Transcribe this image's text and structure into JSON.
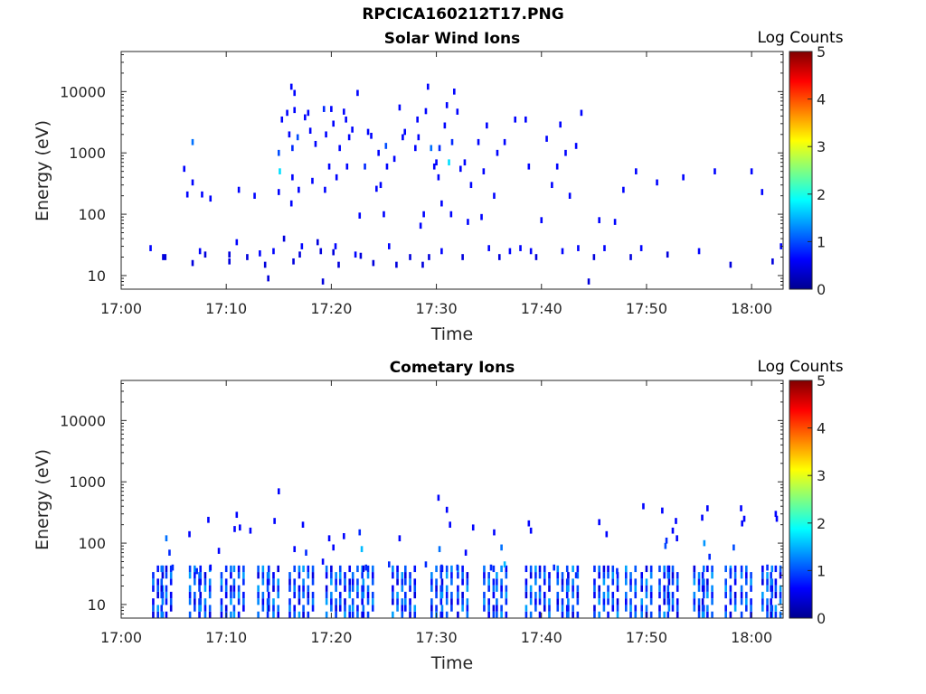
{
  "figure_title": "RPCICA160212T17.PNG",
  "colors": {
    "colormap": "jet",
    "axis": "#262626",
    "background": "#ffffff"
  },
  "chart_data": [
    {
      "type": "heatmap",
      "title": "Solar Wind Ions",
      "xlabel": "Time",
      "ylabel": "Energy (eV)",
      "colorbar_label": "Log Counts",
      "x_ticks": [
        "17:00",
        "17:10",
        "17:20",
        "17:30",
        "17:40",
        "17:50",
        "18:00"
      ],
      "x_tick_minutes": [
        0,
        10,
        20,
        30,
        40,
        50,
        60
      ],
      "xlim_minutes": [
        0,
        63
      ],
      "y_scale": "log",
      "y_ticks": [
        "10",
        "100",
        "1000",
        "10000"
      ],
      "y_tick_values": [
        10,
        100,
        1000,
        10000
      ],
      "ylim": [
        6,
        45000
      ],
      "colorbar_ticks": [
        "0",
        "1",
        "2",
        "3",
        "4",
        "5"
      ],
      "colorbar_range": [
        0,
        5
      ],
      "points_note_units": "[minutes after 17:00, energy eV, log counts]",
      "points": [
        [
          2.8,
          28,
          0.3
        ],
        [
          4.0,
          20,
          0.2
        ],
        [
          4.2,
          20,
          0.2
        ],
        [
          6.0,
          550,
          0.3
        ],
        [
          6.3,
          210,
          0.3
        ],
        [
          6.8,
          16,
          0.2
        ],
        [
          6.8,
          1500,
          0.6
        ],
        [
          6.8,
          330,
          0.3
        ],
        [
          7.5,
          25,
          0.3
        ],
        [
          7.7,
          210,
          0.3
        ],
        [
          8.0,
          22,
          0.2
        ],
        [
          8.5,
          180,
          0.3
        ],
        [
          10.3,
          17,
          0.2
        ],
        [
          10.3,
          22,
          0.2
        ],
        [
          11.0,
          35,
          0.3
        ],
        [
          11.2,
          250,
          0.3
        ],
        [
          12.0,
          20,
          0.2
        ],
        [
          12.7,
          200,
          0.3
        ],
        [
          13.2,
          23,
          0.3
        ],
        [
          13.7,
          15,
          0.2
        ],
        [
          14.0,
          9,
          0.2
        ],
        [
          14.5,
          25,
          0.3
        ],
        [
          15.0,
          1000,
          0.5
        ],
        [
          15.0,
          230,
          0.3
        ],
        [
          15.1,
          500,
          0.9
        ],
        [
          15.3,
          3500,
          0.3
        ],
        [
          15.5,
          40,
          0.2
        ],
        [
          15.8,
          4500,
          0.3
        ],
        [
          16.0,
          2000,
          0.3
        ],
        [
          16.2,
          12000,
          0.3
        ],
        [
          16.2,
          150,
          0.3
        ],
        [
          16.3,
          1200,
          0.4
        ],
        [
          16.3,
          400,
          0.3
        ],
        [
          16.4,
          17,
          0.2
        ],
        [
          16.5,
          9500,
          0.3
        ],
        [
          16.5,
          5000,
          0.3
        ],
        [
          16.8,
          1800,
          0.5
        ],
        [
          16.9,
          250,
          0.3
        ],
        [
          17.0,
          22,
          0.2
        ],
        [
          17.2,
          30,
          0.3
        ],
        [
          17.5,
          3800,
          0.3
        ],
        [
          17.8,
          4500,
          0.3
        ],
        [
          18.0,
          2300,
          0.3
        ],
        [
          18.2,
          350,
          0.3
        ],
        [
          18.5,
          1400,
          0.3
        ],
        [
          18.7,
          35,
          0.2
        ],
        [
          19.0,
          25,
          0.2
        ],
        [
          19.2,
          8,
          0.2
        ],
        [
          19.3,
          5200,
          0.4
        ],
        [
          19.4,
          250,
          0.3
        ],
        [
          19.5,
          2000,
          0.3
        ],
        [
          19.8,
          600,
          0.3
        ],
        [
          20.0,
          5200,
          0.3
        ],
        [
          20.2,
          3000,
          0.3
        ],
        [
          20.2,
          24,
          0.2
        ],
        [
          20.4,
          30,
          0.3
        ],
        [
          20.5,
          400,
          0.3
        ],
        [
          20.7,
          15,
          0.2
        ],
        [
          20.8,
          1200,
          0.3
        ],
        [
          21.2,
          4700,
          0.3
        ],
        [
          21.4,
          3500,
          0.3
        ],
        [
          21.5,
          600,
          0.3
        ],
        [
          21.7,
          1800,
          0.3
        ],
        [
          22.0,
          2400,
          0.3
        ],
        [
          22.3,
          22,
          0.3
        ],
        [
          22.5,
          9500,
          0.3
        ],
        [
          22.7,
          95,
          0.3
        ],
        [
          22.8,
          21,
          0.2
        ],
        [
          23.2,
          600,
          0.4
        ],
        [
          23.5,
          2200,
          0.3
        ],
        [
          23.8,
          1900,
          0.3
        ],
        [
          24.0,
          16,
          0.2
        ],
        [
          24.3,
          260,
          0.3
        ],
        [
          24.5,
          1000,
          0.3
        ],
        [
          24.7,
          300,
          0.3
        ],
        [
          25.0,
          100,
          0.3
        ],
        [
          25.2,
          1300,
          0.5
        ],
        [
          25.3,
          600,
          0.3
        ],
        [
          25.5,
          30,
          0.3
        ],
        [
          26.0,
          800,
          0.3
        ],
        [
          26.2,
          15,
          0.2
        ],
        [
          26.5,
          5500,
          0.3
        ],
        [
          26.8,
          1800,
          0.3
        ],
        [
          27.0,
          2200,
          0.3
        ],
        [
          27.5,
          20,
          0.2
        ],
        [
          28.0,
          1200,
          0.3
        ],
        [
          28.2,
          3500,
          0.3
        ],
        [
          28.3,
          1800,
          0.3
        ],
        [
          28.5,
          65,
          0.3
        ],
        [
          28.7,
          15,
          0.2
        ],
        [
          28.8,
          100,
          0.3
        ],
        [
          29.0,
          4800,
          0.3
        ],
        [
          29.2,
          12000,
          0.3
        ],
        [
          29.3,
          20,
          0.2
        ],
        [
          29.5,
          1200,
          0.6
        ],
        [
          29.8,
          600,
          0.3
        ],
        [
          30.0,
          700,
          0.3
        ],
        [
          30.2,
          400,
          0.3
        ],
        [
          30.3,
          1200,
          0.4
        ],
        [
          30.5,
          150,
          0.3
        ],
        [
          30.5,
          25,
          0.3
        ],
        [
          30.8,
          2800,
          0.3
        ],
        [
          31.0,
          6000,
          0.3
        ],
        [
          31.2,
          700,
          0.9
        ],
        [
          31.4,
          100,
          0.3
        ],
        [
          31.5,
          1500,
          0.4
        ],
        [
          31.7,
          10000,
          0.3
        ],
        [
          32.0,
          4700,
          0.3
        ],
        [
          32.3,
          550,
          0.3
        ],
        [
          32.5,
          20,
          0.2
        ],
        [
          32.7,
          700,
          0.3
        ],
        [
          33.0,
          75,
          0.3
        ],
        [
          33.3,
          300,
          0.3
        ],
        [
          34.0,
          1500,
          0.3
        ],
        [
          34.3,
          90,
          0.3
        ],
        [
          34.5,
          500,
          0.3
        ],
        [
          34.8,
          2800,
          0.3
        ],
        [
          35.0,
          28,
          0.3
        ],
        [
          35.5,
          200,
          0.3
        ],
        [
          35.8,
          1000,
          0.3
        ],
        [
          36.0,
          20,
          0.2
        ],
        [
          36.5,
          1500,
          0.3
        ],
        [
          37.0,
          25,
          0.3
        ],
        [
          37.5,
          3500,
          0.3
        ],
        [
          38.0,
          28,
          0.3
        ],
        [
          38.5,
          3500,
          0.3
        ],
        [
          38.8,
          600,
          0.3
        ],
        [
          39.0,
          25,
          0.3
        ],
        [
          39.5,
          20,
          0.2
        ],
        [
          40.0,
          80,
          0.3
        ],
        [
          40.5,
          1700,
          0.3
        ],
        [
          41.0,
          300,
          0.3
        ],
        [
          41.5,
          600,
          0.3
        ],
        [
          41.8,
          2900,
          0.3
        ],
        [
          42.0,
          25,
          0.3
        ],
        [
          42.3,
          1000,
          0.3
        ],
        [
          42.7,
          200,
          0.3
        ],
        [
          43.3,
          1300,
          0.3
        ],
        [
          43.5,
          28,
          0.3
        ],
        [
          43.8,
          4500,
          0.3
        ],
        [
          44.5,
          8,
          0.2
        ],
        [
          45.0,
          20,
          0.2
        ],
        [
          45.5,
          80,
          0.3
        ],
        [
          46.0,
          28,
          0.3
        ],
        [
          47.0,
          75,
          0.3
        ],
        [
          47.8,
          250,
          0.3
        ],
        [
          48.5,
          20,
          0.2
        ],
        [
          49.0,
          500,
          0.3
        ],
        [
          49.5,
          28,
          0.3
        ],
        [
          51.0,
          330,
          0.3
        ],
        [
          52.0,
          22,
          0.2
        ],
        [
          53.5,
          400,
          0.3
        ],
        [
          55.0,
          25,
          0.3
        ],
        [
          56.5,
          500,
          0.3
        ],
        [
          58.0,
          15,
          0.2
        ],
        [
          60.0,
          500,
          0.3
        ],
        [
          61.0,
          230,
          0.3
        ],
        [
          62.0,
          17,
          0.2
        ],
        [
          62.8,
          30,
          0.3
        ]
      ]
    },
    {
      "type": "heatmap",
      "title": "Cometary Ions",
      "xlabel": "Time",
      "ylabel": "Energy (eV)",
      "colorbar_label": "Log Counts",
      "x_ticks": [
        "17:00",
        "17:10",
        "17:20",
        "17:30",
        "17:40",
        "17:50",
        "18:00"
      ],
      "x_tick_minutes": [
        0,
        10,
        20,
        30,
        40,
        50,
        60
      ],
      "xlim_minutes": [
        0,
        63
      ],
      "y_scale": "log",
      "y_ticks": [
        "10",
        "100",
        "1000",
        "10000"
      ],
      "y_tick_values": [
        10,
        100,
        1000,
        10000
      ],
      "ylim": [
        6,
        45000
      ],
      "colorbar_ticks": [
        "0",
        "1",
        "2",
        "3",
        "4",
        "5"
      ],
      "colorbar_range": [
        0,
        5
      ],
      "spike_minutes": [
        3.5,
        4.3,
        7.0,
        8.0,
        10.0,
        11.2,
        13.5,
        14.5,
        16.5,
        17.8,
        20.0,
        21.3,
        22.5,
        23.5,
        26.3,
        27.5,
        30.0,
        31.0,
        32.5,
        35.0,
        36.2,
        39.0,
        40.3,
        42.0,
        43.0,
        45.5,
        46.8,
        48.5,
        50.0,
        51.7,
        52.5,
        55.0,
        55.8,
        58.0,
        59.5,
        61.5,
        62.3
      ],
      "spike_range_eV": [
        6,
        35
      ],
      "points_note_units": "[minutes after 17:00, energy eV, log counts]",
      "points": [
        [
          4.3,
          120,
          0.6
        ],
        [
          4.6,
          70,
          0.4
        ],
        [
          4.9,
          40,
          0.4
        ],
        [
          6.5,
          140,
          0.3
        ],
        [
          7.2,
          35,
          0.4
        ],
        [
          8.3,
          240,
          0.3
        ],
        [
          8.5,
          40,
          0.3
        ],
        [
          9.3,
          75,
          0.3
        ],
        [
          10.8,
          170,
          0.3
        ],
        [
          11.0,
          290,
          0.3
        ],
        [
          11.3,
          180,
          0.3
        ],
        [
          12.3,
          160,
          0.3
        ],
        [
          14.6,
          230,
          0.3
        ],
        [
          15.0,
          700,
          0.3
        ],
        [
          16.5,
          80,
          0.3
        ],
        [
          17.3,
          200,
          0.3
        ],
        [
          17.6,
          70,
          0.4
        ],
        [
          19.2,
          50,
          0.3
        ],
        [
          19.8,
          120,
          0.3
        ],
        [
          20.2,
          85,
          0.3
        ],
        [
          21.2,
          130,
          0.3
        ],
        [
          22.7,
          150,
          0.4
        ],
        [
          22.9,
          80,
          0.8
        ],
        [
          23.3,
          40,
          0.4
        ],
        [
          25.5,
          45,
          0.4
        ],
        [
          26.5,
          120,
          0.3
        ],
        [
          29.0,
          45,
          0.4
        ],
        [
          30.2,
          550,
          0.3
        ],
        [
          30.3,
          80,
          0.6
        ],
        [
          30.5,
          40,
          0.4
        ],
        [
          31.0,
          350,
          0.3
        ],
        [
          31.3,
          200,
          0.3
        ],
        [
          32.0,
          40,
          0.4
        ],
        [
          32.8,
          70,
          0.3
        ],
        [
          33.5,
          180,
          0.3
        ],
        [
          35.2,
          40,
          0.4
        ],
        [
          35.5,
          150,
          0.3
        ],
        [
          36.2,
          85,
          0.6
        ],
        [
          36.5,
          45,
          0.8
        ],
        [
          38.8,
          210,
          0.3
        ],
        [
          39.0,
          160,
          0.3
        ],
        [
          41.2,
          40,
          0.4
        ],
        [
          43.3,
          30,
          0.4
        ],
        [
          45.5,
          220,
          0.3
        ],
        [
          46.2,
          140,
          0.3
        ],
        [
          47.2,
          35,
          0.4
        ],
        [
          49.7,
          400,
          0.3
        ],
        [
          51.5,
          340,
          0.3
        ],
        [
          51.8,
          90,
          0.5
        ],
        [
          51.9,
          110,
          0.4
        ],
        [
          52.5,
          160,
          0.3
        ],
        [
          52.8,
          230,
          0.3
        ],
        [
          52.9,
          120,
          0.3
        ],
        [
          55.3,
          260,
          0.3
        ],
        [
          55.5,
          100,
          0.7
        ],
        [
          55.8,
          370,
          0.3
        ],
        [
          56.0,
          60,
          0.4
        ],
        [
          58.3,
          85,
          0.5
        ],
        [
          58.0,
          35,
          0.4
        ],
        [
          59.0,
          370,
          0.3
        ],
        [
          59.1,
          210,
          0.3
        ],
        [
          59.3,
          250,
          0.3
        ],
        [
          61.5,
          40,
          0.4
        ],
        [
          62.3,
          300,
          0.3
        ],
        [
          62.4,
          250,
          0.3
        ]
      ]
    }
  ]
}
